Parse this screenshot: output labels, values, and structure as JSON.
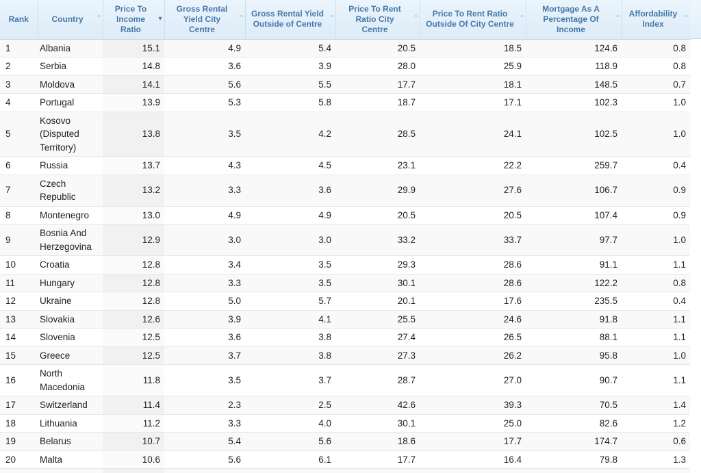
{
  "table": {
    "sorted_column": "Price To Income Ratio",
    "sort_direction": "descending",
    "icons": {
      "asc_glyph": "ˆ",
      "desc_glyph": "▾"
    },
    "columns": [
      {
        "key": "rank",
        "label": "Rank",
        "lines": [
          "Rank"
        ],
        "sortable": false,
        "sort": null
      },
      {
        "key": "country",
        "label": "Country",
        "lines": [
          "Country"
        ],
        "sortable": true,
        "sort": "none"
      },
      {
        "key": "price_to_income_ratio",
        "label": "Price To Income Ratio",
        "lines": [
          "Price To",
          "Income",
          "Ratio"
        ],
        "sortable": true,
        "sort": "desc"
      },
      {
        "key": "gross_rental_yield_city_centre",
        "label": "Gross Rental Yield City Centre",
        "lines": [
          "Gross Rental",
          "Yield City",
          "Centre"
        ],
        "sortable": true,
        "sort": "none"
      },
      {
        "key": "gross_rental_yield_outside_centre",
        "label": "Gross Rental Yield Outside of Centre",
        "lines": [
          "Gross Rental Yield",
          "Outside of Centre"
        ],
        "sortable": true,
        "sort": "none"
      },
      {
        "key": "price_to_rent_city_centre",
        "label": "Price To Rent Ratio City Centre",
        "lines": [
          "Price To Rent",
          "Ratio City",
          "Centre"
        ],
        "sortable": true,
        "sort": "none"
      },
      {
        "key": "price_to_rent_outside_centre",
        "label": "Price To Rent Ratio Outside Of City Centre",
        "lines": [
          "Price To Rent Ratio",
          "Outside Of City Centre"
        ],
        "sortable": true,
        "sort": "none"
      },
      {
        "key": "mortgage_pct_income",
        "label": "Mortgage As A Percentage Of Income",
        "lines": [
          "Mortgage As A",
          "Percentage Of",
          "Income"
        ],
        "sortable": true,
        "sort": "none"
      },
      {
        "key": "affordability_index",
        "label": "Affordability Index",
        "lines": [
          "Affordability",
          "Index"
        ],
        "sortable": true,
        "sort": "none"
      }
    ],
    "rows": [
      {
        "cells": [
          "1",
          "Albania",
          "15.1",
          "4.9",
          "5.4",
          "20.5",
          "18.5",
          "124.6",
          "0.8"
        ]
      },
      {
        "cells": [
          "2",
          "Serbia",
          "14.8",
          "3.6",
          "3.9",
          "28.0",
          "25.9",
          "118.9",
          "0.8"
        ]
      },
      {
        "cells": [
          "3",
          "Moldova",
          "14.1",
          "5.6",
          "5.5",
          "17.7",
          "18.1",
          "148.5",
          "0.7"
        ]
      },
      {
        "cells": [
          "4",
          "Portugal",
          "13.9",
          "5.3",
          "5.8",
          "18.7",
          "17.1",
          "102.3",
          "1.0"
        ]
      },
      {
        "cells": [
          "5",
          "Kosovo (Disputed Territory)",
          "13.8",
          "3.5",
          "4.2",
          "28.5",
          "24.1",
          "102.5",
          "1.0"
        ]
      },
      {
        "cells": [
          "6",
          "Russia",
          "13.7",
          "4.3",
          "4.5",
          "23.1",
          "22.2",
          "259.7",
          "0.4"
        ]
      },
      {
        "cells": [
          "7",
          "Czech Republic",
          "13.2",
          "3.3",
          "3.6",
          "29.9",
          "27.6",
          "106.7",
          "0.9"
        ]
      },
      {
        "cells": [
          "8",
          "Montenegro",
          "13.0",
          "4.9",
          "4.9",
          "20.5",
          "20.5",
          "107.4",
          "0.9"
        ]
      },
      {
        "cells": [
          "9",
          "Bosnia And Herzegovina",
          "12.9",
          "3.0",
          "3.0",
          "33.2",
          "33.7",
          "97.7",
          "1.0"
        ]
      },
      {
        "cells": [
          "10",
          "Croatia",
          "12.8",
          "3.4",
          "3.5",
          "29.3",
          "28.6",
          "91.1",
          "1.1"
        ]
      },
      {
        "cells": [
          "11",
          "Hungary",
          "12.8",
          "3.3",
          "3.5",
          "30.1",
          "28.6",
          "122.2",
          "0.8"
        ]
      },
      {
        "cells": [
          "12",
          "Ukraine",
          "12.8",
          "5.0",
          "5.7",
          "20.1",
          "17.6",
          "235.5",
          "0.4"
        ]
      },
      {
        "cells": [
          "13",
          "Slovakia",
          "12.6",
          "3.9",
          "4.1",
          "25.5",
          "24.6",
          "91.8",
          "1.1"
        ]
      },
      {
        "cells": [
          "14",
          "Slovenia",
          "12.5",
          "3.6",
          "3.8",
          "27.4",
          "26.5",
          "88.1",
          "1.1"
        ]
      },
      {
        "cells": [
          "15",
          "Greece",
          "12.5",
          "3.7",
          "3.8",
          "27.3",
          "26.2",
          "95.8",
          "1.0"
        ]
      },
      {
        "cells": [
          "16",
          "North Macedonia",
          "11.8",
          "3.5",
          "3.7",
          "28.7",
          "27.0",
          "90.7",
          "1.1"
        ]
      },
      {
        "cells": [
          "17",
          "Switzerland",
          "11.4",
          "2.3",
          "2.5",
          "42.6",
          "39.3",
          "70.5",
          "1.4"
        ]
      },
      {
        "cells": [
          "18",
          "Lithuania",
          "11.2",
          "3.3",
          "4.0",
          "30.1",
          "25.0",
          "82.6",
          "1.2"
        ]
      },
      {
        "cells": [
          "19",
          "Belarus",
          "10.7",
          "5.4",
          "5.6",
          "18.6",
          "17.7",
          "174.7",
          "0.6"
        ]
      },
      {
        "cells": [
          "20",
          "Malta",
          "10.6",
          "5.6",
          "6.1",
          "17.7",
          "16.4",
          "79.8",
          "1.3"
        ]
      }
    ]
  },
  "colors": {
    "header_background": "#e3effa",
    "header_text": "#4678a9",
    "sort_icon_inactive": "#9dc0de",
    "sort_icon_active": "#4678a9",
    "row_stripe": "#f9f9f9",
    "sorted_column_stripe": "#f1f1f1",
    "sorted_column_white_row": "#fafafa",
    "row_border": "#e7e7e7",
    "body_text": "#222222"
  }
}
